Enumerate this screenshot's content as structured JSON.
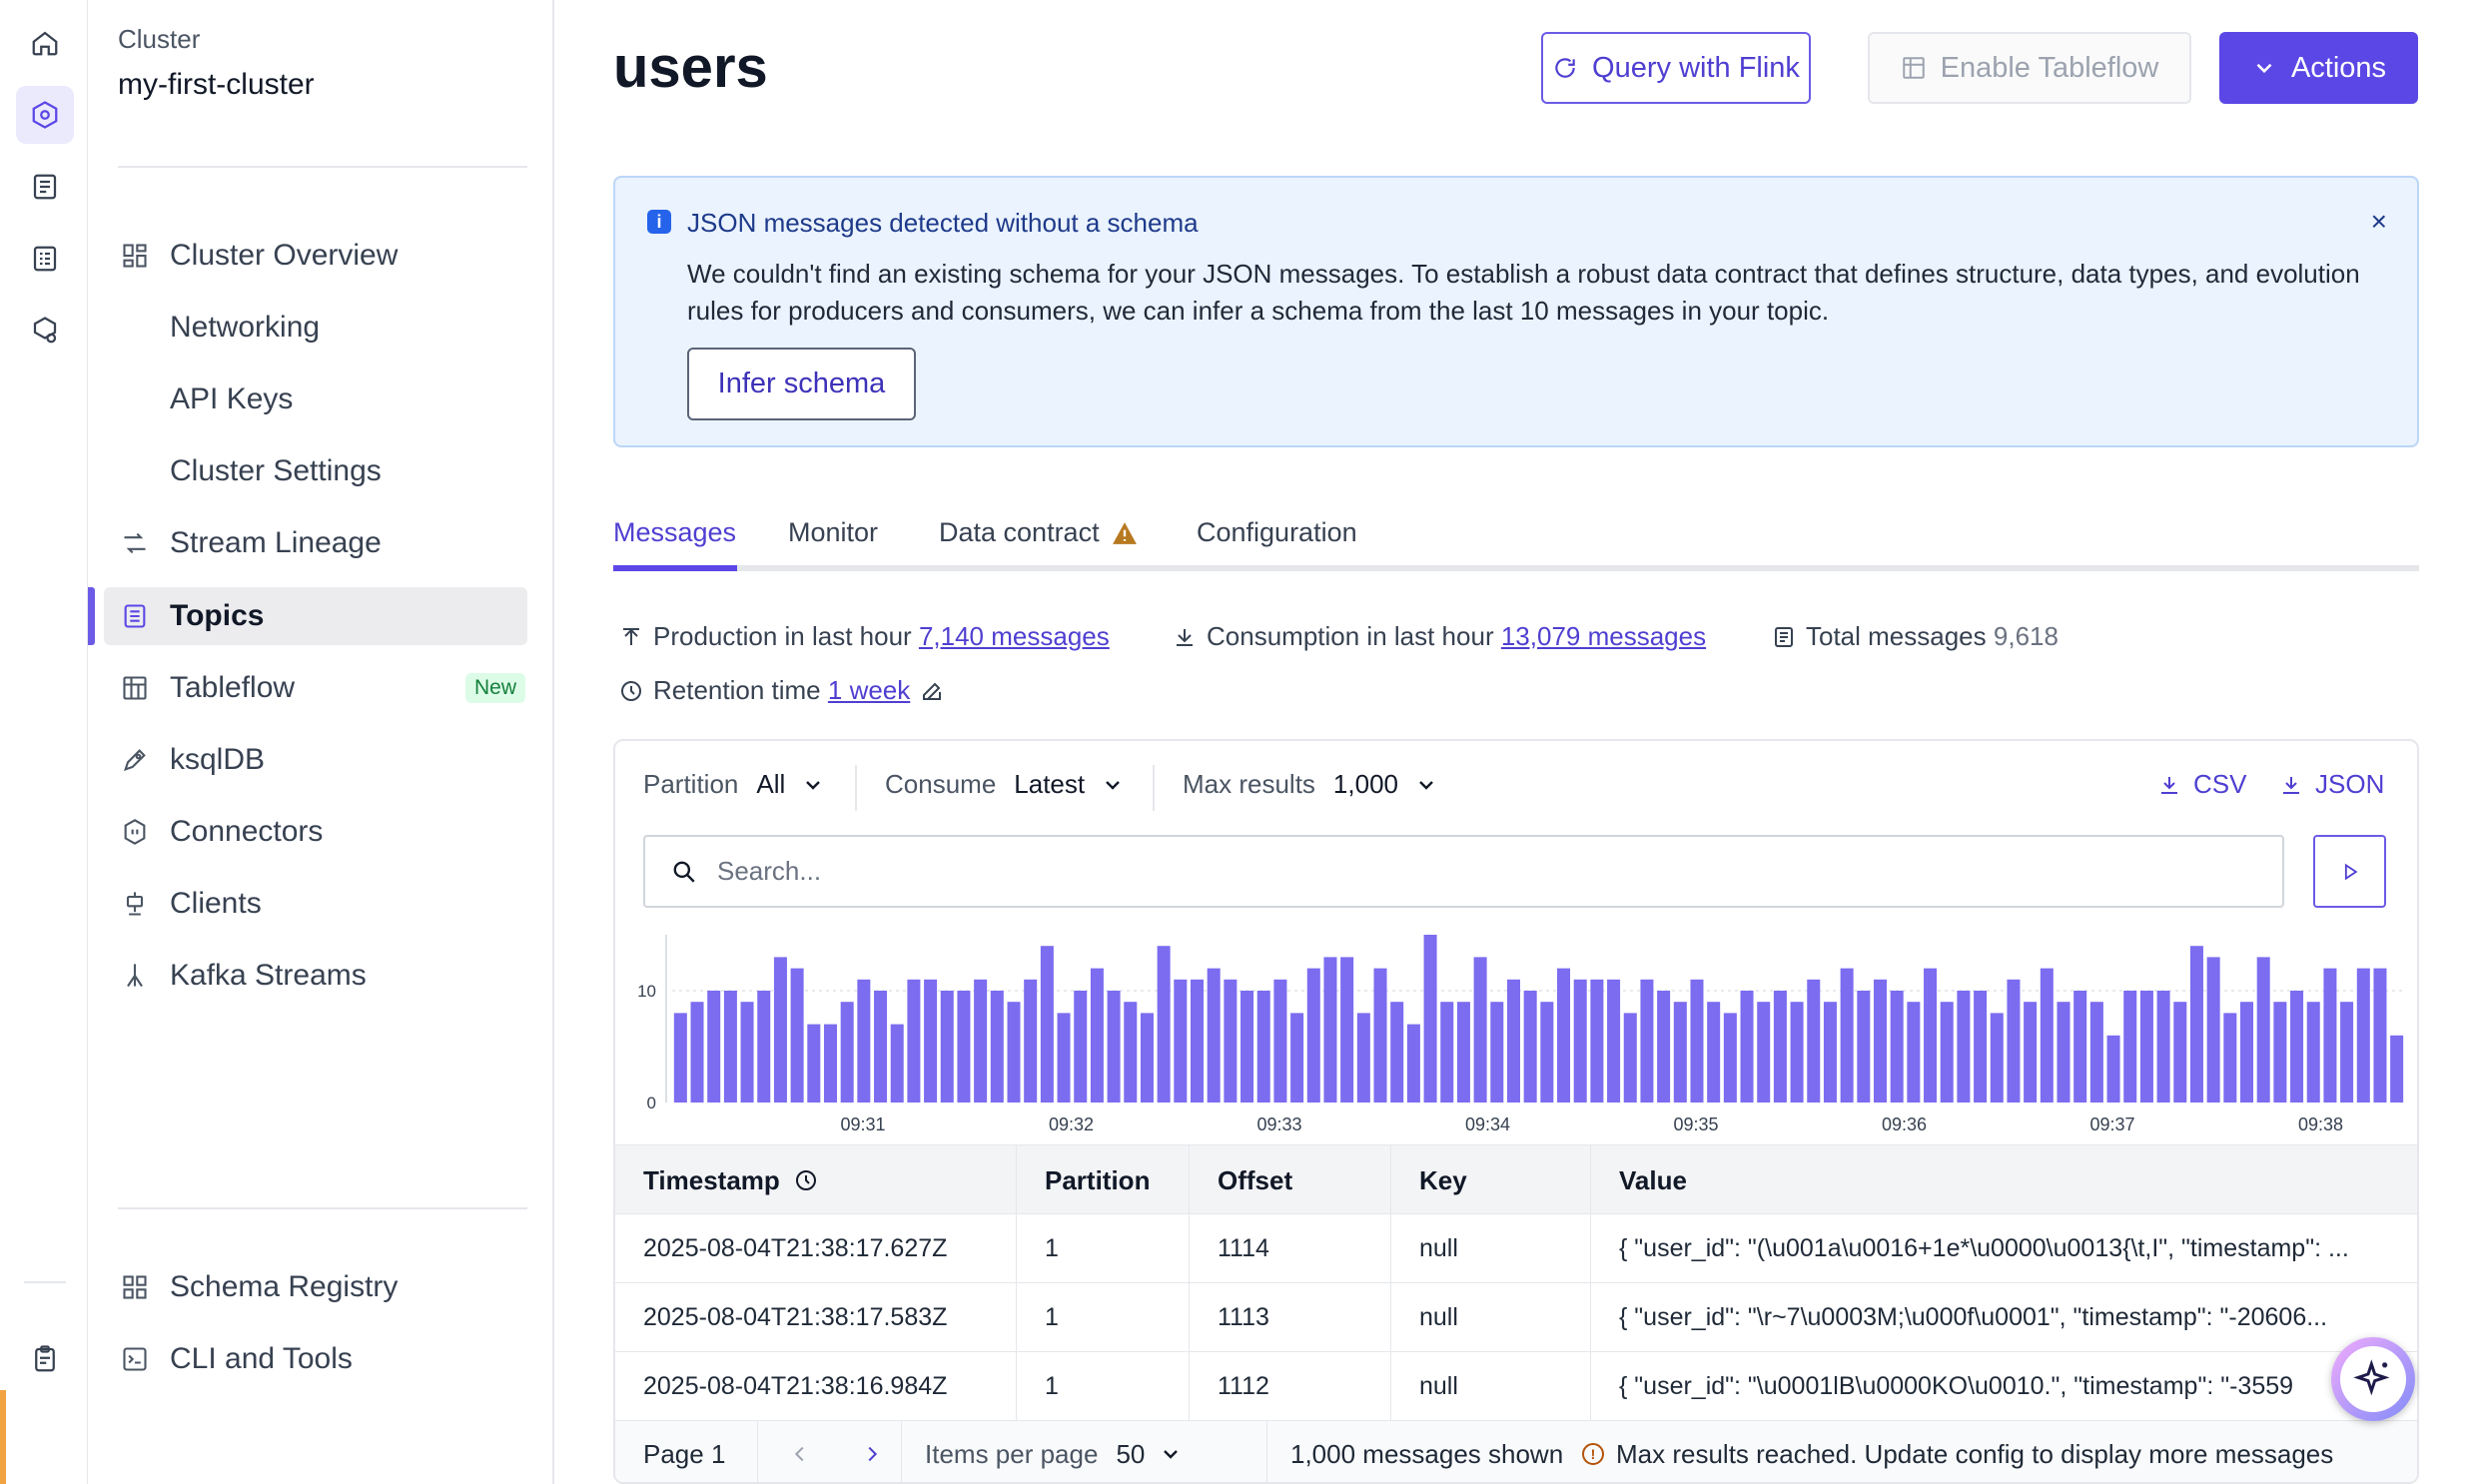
{
  "sidebar": {
    "cluster_label": "Cluster",
    "cluster_name": "my-first-cluster",
    "items": [
      {
        "label": "Cluster Overview"
      },
      {
        "label": "Networking"
      },
      {
        "label": "API Keys"
      },
      {
        "label": "Cluster Settings"
      },
      {
        "label": "Stream Lineage"
      },
      {
        "label": "Topics"
      },
      {
        "label": "Tableflow",
        "badge": "New"
      },
      {
        "label": "ksqlDB"
      },
      {
        "label": "Connectors"
      },
      {
        "label": "Clients"
      },
      {
        "label": "Kafka Streams"
      }
    ],
    "bottom_items": [
      {
        "label": "Schema Registry"
      },
      {
        "label": "CLI and Tools"
      }
    ]
  },
  "header": {
    "title": "users",
    "query_flink": "Query with Flink",
    "enable_tableflow": "Enable Tableflow",
    "actions": "Actions"
  },
  "alert": {
    "title": "JSON messages detected without a schema",
    "body": "We couldn't find an existing schema for your JSON messages. To establish a robust data contract that defines structure, data types, and evolution rules for producers and consumers, we can infer a schema from the last 10 messages in your topic.",
    "button": "Infer schema",
    "close": "×",
    "info_glyph": "i"
  },
  "tabs": [
    {
      "label": "Messages"
    },
    {
      "label": "Monitor"
    },
    {
      "label": "Data contract"
    },
    {
      "label": "Configuration"
    }
  ],
  "stats": {
    "production_label": "Production in last hour",
    "production_value": "7,140 messages",
    "consumption_label": "Consumption in last hour",
    "consumption_value": "13,079 messages",
    "total_label": "Total messages",
    "total_value": "9,618",
    "retention_label": "Retention time",
    "retention_value": "1 week"
  },
  "controls": {
    "partition_label": "Partition",
    "partition_value": "All",
    "consume_label": "Consume",
    "consume_value": "Latest",
    "max_label": "Max results",
    "max_value": "1,000",
    "csv": "CSV",
    "json": "JSON",
    "search_placeholder": "Search..."
  },
  "chart_data": {
    "type": "bar",
    "color": "#7b6cf0",
    "ylim": [
      0,
      15
    ],
    "yticks": [
      0,
      10
    ],
    "xtick_labels": [
      "09:31",
      "09:32",
      "09:33",
      "09:34",
      "09:35",
      "09:36",
      "09:37",
      "09:38"
    ],
    "values": [
      8,
      9,
      10,
      10,
      9,
      10,
      13,
      12,
      7,
      7,
      9,
      11,
      10,
      7,
      11,
      11,
      10,
      10,
      11,
      10,
      9,
      11,
      14,
      8,
      10,
      12,
      10,
      9,
      8,
      14,
      11,
      11,
      12,
      11,
      10,
      10,
      11,
      8,
      12,
      13,
      13,
      8,
      12,
      9,
      7,
      15,
      9,
      9,
      13,
      9,
      11,
      10,
      9,
      12,
      11,
      11,
      11,
      8,
      11,
      10,
      9,
      11,
      9,
      8,
      10,
      9,
      10,
      9,
      11,
      9,
      12,
      10,
      11,
      10,
      9,
      12,
      9,
      10,
      10,
      8,
      11,
      9,
      12,
      9,
      10,
      9,
      6,
      10,
      10,
      10,
      9,
      14,
      13,
      8,
      9,
      13,
      9,
      10,
      9,
      12,
      9,
      12,
      12,
      6
    ],
    "series_name": "",
    "xlabel": "",
    "ylabel": ""
  },
  "table": {
    "timestamp_header": "Timestamp",
    "headers": [
      "Partition",
      "Offset",
      "Key",
      "Value"
    ],
    "rows": [
      [
        "2025-08-04T21:38:17.627Z",
        "1",
        "1114",
        "null",
        "{ \"user_id\": \"(\\u001a\\u0016+1e*\\u0000\\u0013{\\t,I\", \"timestamp\": ..."
      ],
      [
        "2025-08-04T21:38:17.583Z",
        "1",
        "1113",
        "null",
        "{ \"user_id\": \"\\r~7\\u0003M;\\u000f\\u0001\", \"timestamp\": \"-20606..."
      ],
      [
        "2025-08-04T21:38:16.984Z",
        "1",
        "1112",
        "null",
        "{ \"user_id\": \"\\u0001lB\\u0000KO\\u0010.\", \"timestamp\": \"-3559"
      ]
    ]
  },
  "pager": {
    "page": "Page 1",
    "items_per_page_label": "Items per page",
    "items_per_page_value": "50",
    "shown": "1,000 messages shown",
    "warning": "Max results reached. Update config to display more messages"
  }
}
